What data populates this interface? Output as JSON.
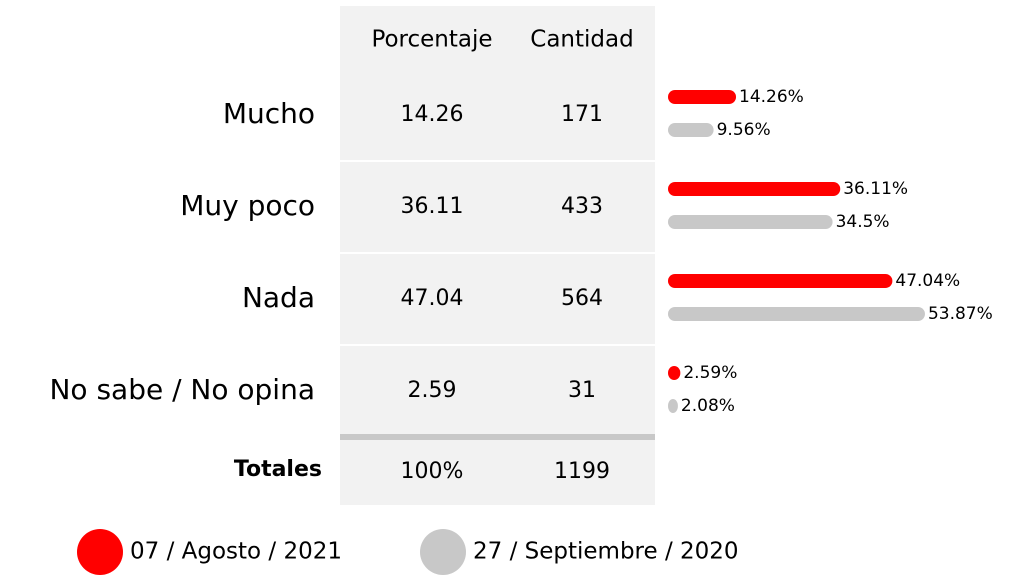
{
  "table": {
    "columns": [
      "Porcentaje",
      "Cantidad"
    ],
    "rows": [
      [
        "14.26",
        "171"
      ],
      [
        "36.11",
        "433"
      ],
      [
        "47.04",
        "564"
      ],
      [
        "2.59",
        "31"
      ]
    ],
    "totals": {
      "label": "Totales",
      "cells": [
        "100%",
        "1199"
      ]
    }
  },
  "chart_data": {
    "type": "bar",
    "orientation": "horizontal",
    "categories": [
      "Mucho",
      "Muy poco",
      "Nada",
      "No sabe / No opina"
    ],
    "series": [
      {
        "name": "07 / Agosto / 2021",
        "color": "#ff0000",
        "values": [
          14.26,
          36.11,
          47.04,
          2.59
        ],
        "value_labels": [
          "14.26%",
          "36.11%",
          "47.04%",
          "2.59%"
        ]
      },
      {
        "name": "27 / Septiembre / 2020",
        "color": "#c8c8c8",
        "values": [
          9.56,
          34.5,
          53.87,
          2.08
        ],
        "value_labels": [
          "9.56%",
          "34.5%",
          "53.87%",
          "2.08%"
        ]
      }
    ]
  }
}
